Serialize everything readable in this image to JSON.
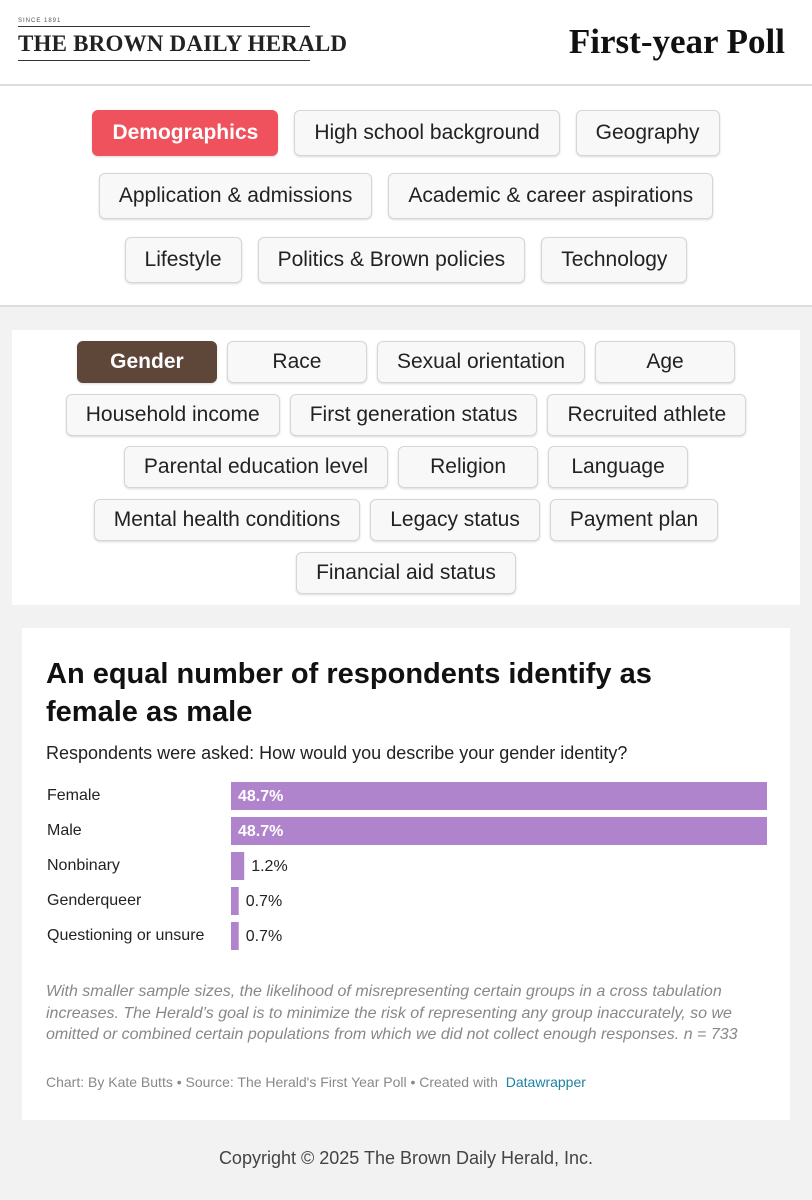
{
  "header": {
    "logo_since": "SINCE 1891",
    "logo": "THE BROWN DAILY HERALD",
    "title": "First-year Poll"
  },
  "nav": {
    "rows": [
      [
        {
          "label": "Demographics",
          "active": true
        },
        {
          "label": "High school background"
        },
        {
          "label": "Geography"
        }
      ],
      [
        {
          "label": "Application & admissions"
        },
        {
          "label": "Academic & career aspirations"
        }
      ],
      [
        {
          "label": "Lifestyle"
        },
        {
          "label": "Politics & Brown policies"
        },
        {
          "label": "Technology"
        }
      ]
    ]
  },
  "subnav": {
    "rows": [
      [
        {
          "label": "Gender",
          "active": true
        },
        {
          "label": "Race"
        },
        {
          "label": "Sexual orientation"
        },
        {
          "label": "Age"
        }
      ],
      [
        {
          "label": "Household income"
        },
        {
          "label": "First generation status"
        },
        {
          "label": "Recruited athlete"
        }
      ],
      [
        {
          "label": "Parental education level"
        },
        {
          "label": "Religion"
        },
        {
          "label": "Language"
        }
      ],
      [
        {
          "label": "Mental health conditions"
        },
        {
          "label": "Legacy status"
        },
        {
          "label": "Payment plan"
        }
      ],
      [
        {
          "label": "Financial aid status"
        }
      ]
    ]
  },
  "chart_data": {
    "type": "bar",
    "orientation": "horizontal",
    "title": "An equal number of respondents identify as female as male",
    "subtitle": "Respondents were asked: How would you describe your gender identity?",
    "categories": [
      "Female",
      "Male",
      "Nonbinary",
      "Genderqueer",
      "Questioning or unsure"
    ],
    "values": [
      48.7,
      48.7,
      1.2,
      0.7,
      0.7
    ],
    "value_labels": [
      "48.7%",
      "48.7%",
      "1.2%",
      "0.7%",
      "0.7%"
    ],
    "color": "#b084cc",
    "note": "With smaller sample sizes, the likelihood of misrepresenting certain groups in a cross tabulation increases. The Herald’s goal is to minimize the risk of representing any group inaccurately, so we omitted or combined certain populations from which we did not collect enough responses. n = 733",
    "credit": "Chart: By Kate Butts • Source: The Herald's First Year Poll • Created with",
    "credit_link": "Datawrapper"
  },
  "footer": {
    "copyright": "Copyright © 2025 The Brown Daily Herald, Inc."
  }
}
